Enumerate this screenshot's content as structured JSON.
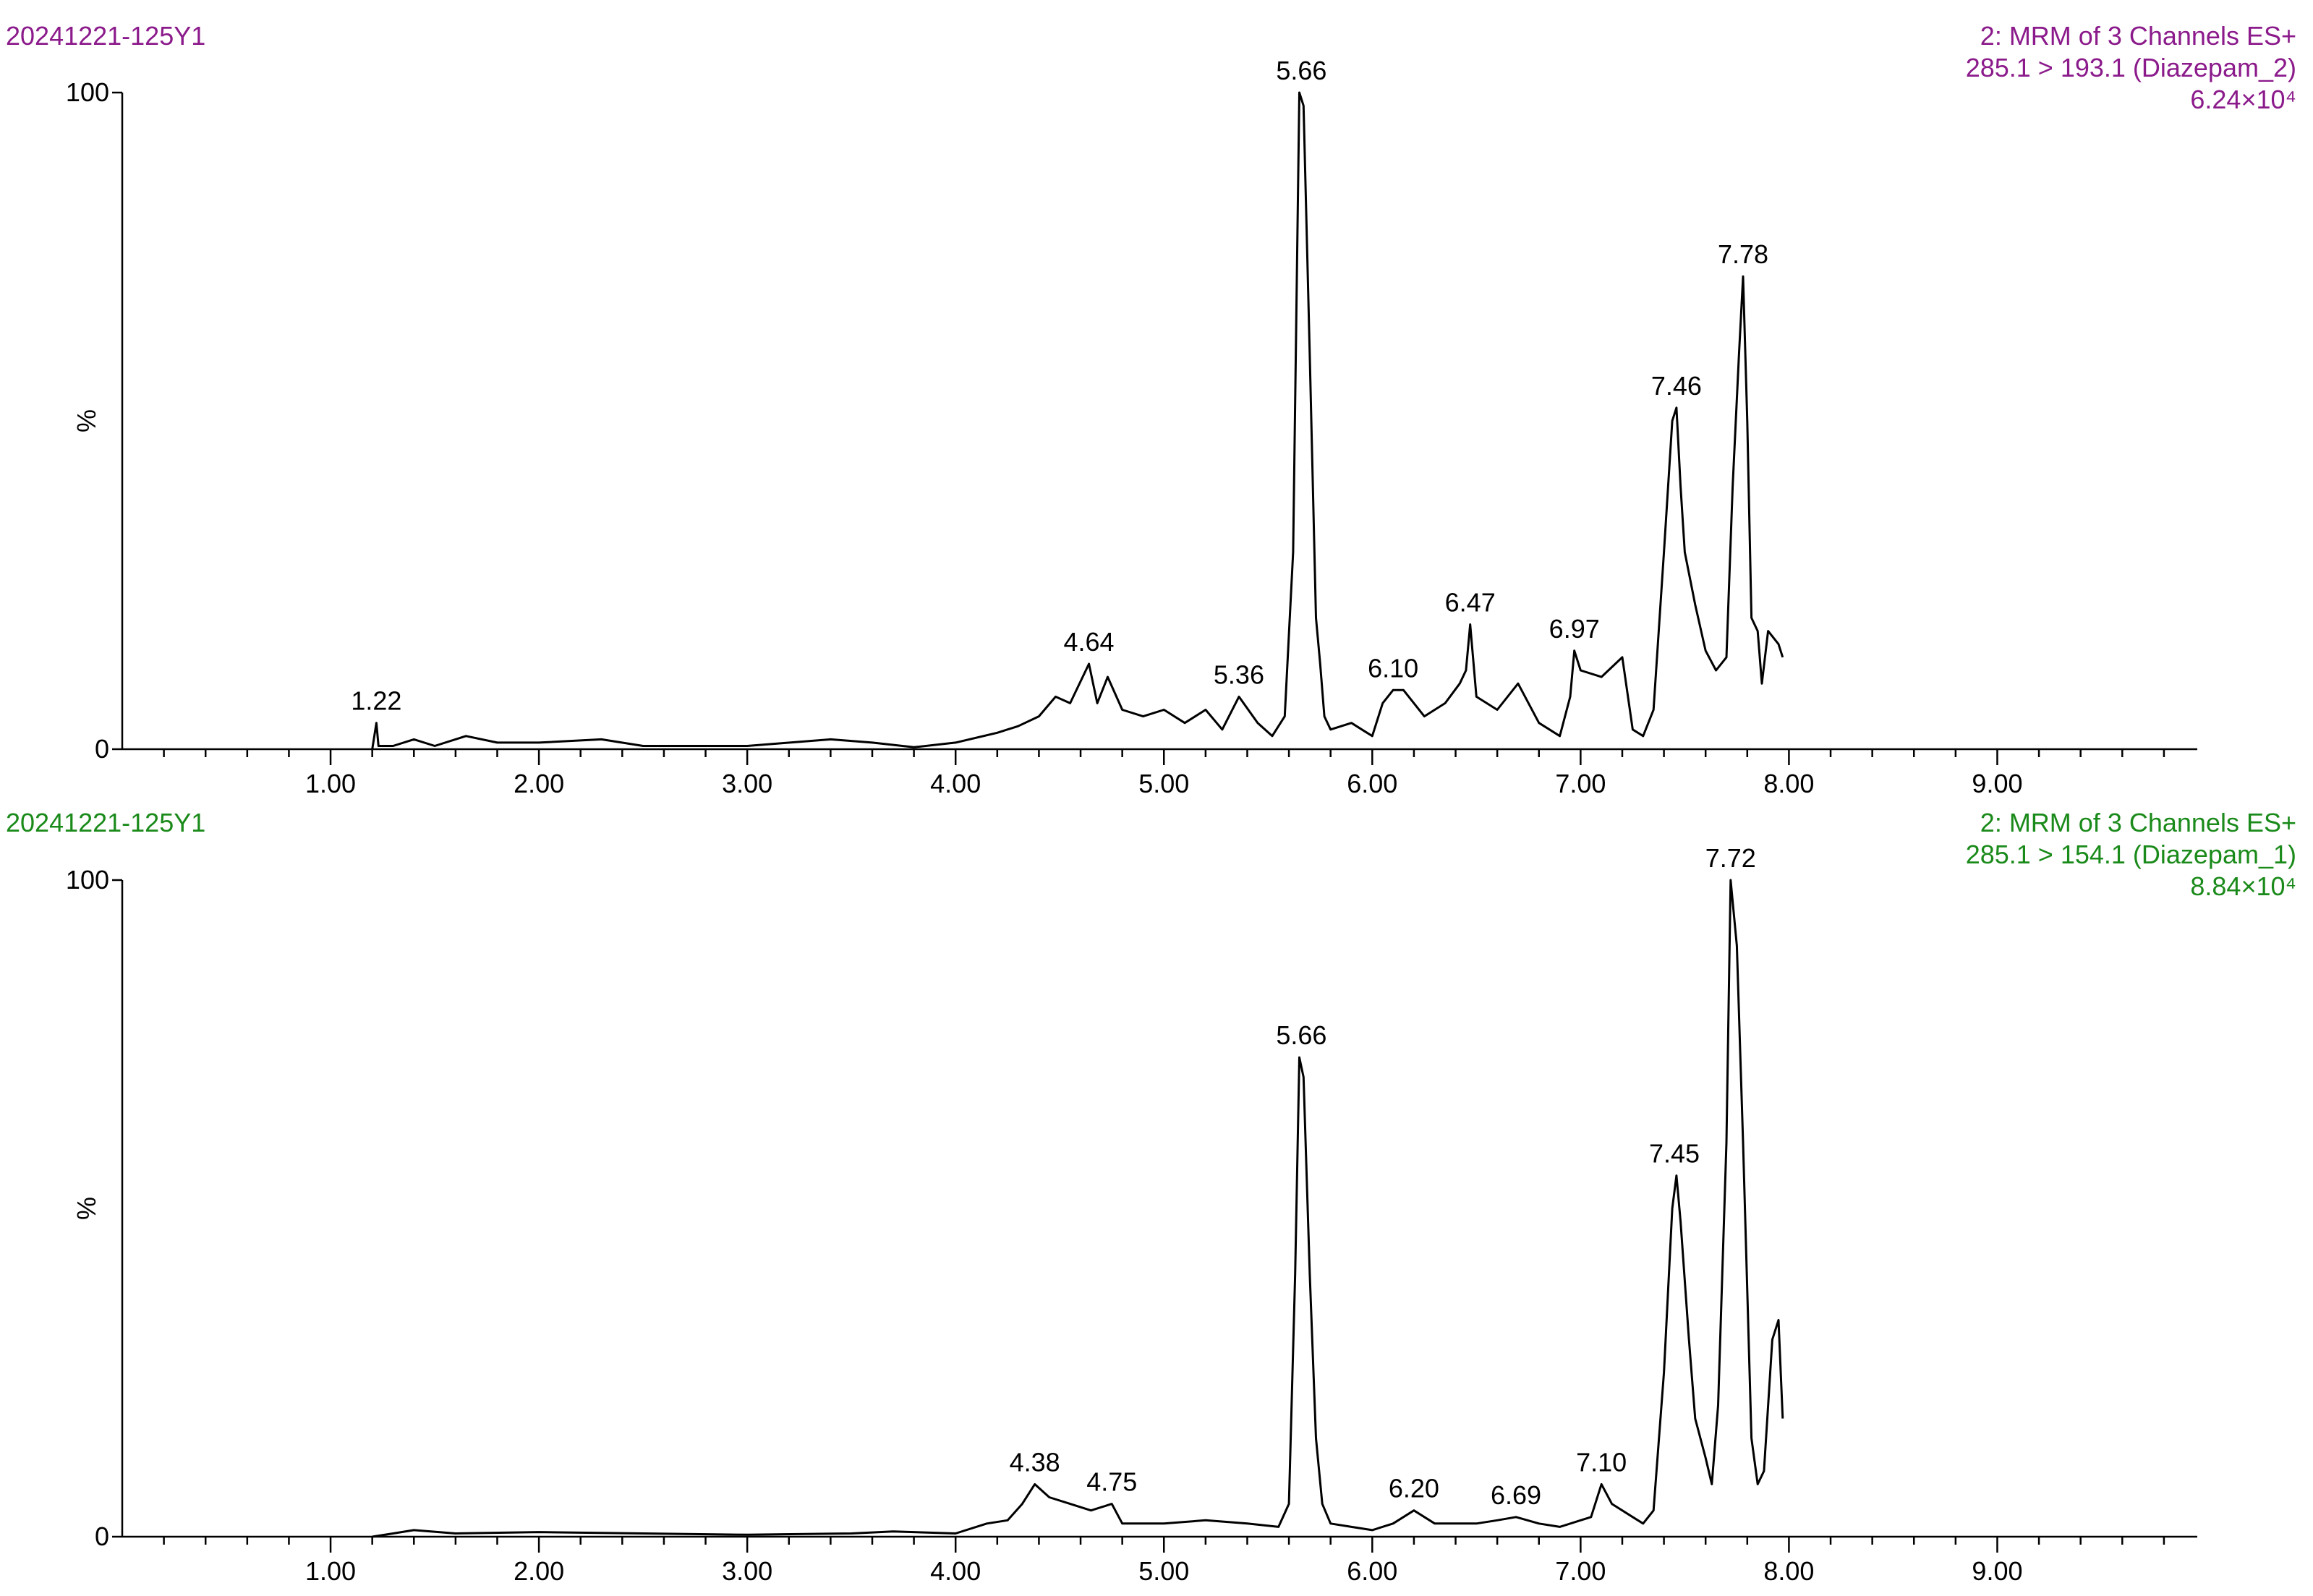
{
  "chart_data": [
    {
      "type": "line",
      "sample": "20241221-125Y1",
      "function": "2: MRM of 3 Channels ES+",
      "transition": "285.1 > 193.1 (Diazepam_2)",
      "intensity": "6.24×10⁴",
      "text_color": "#8b1a8b",
      "line_color": "#000000",
      "ylabel": "%",
      "xlim": [
        0,
        9.96
      ],
      "ylim": [
        0,
        100
      ],
      "yticks": [
        0,
        100
      ],
      "xticks": [
        {
          "value": 1,
          "label": "1.00"
        },
        {
          "value": 2,
          "label": "2.00"
        },
        {
          "value": 3,
          "label": "3.00"
        },
        {
          "value": 4,
          "label": "4.00"
        },
        {
          "value": 5,
          "label": "5.00"
        },
        {
          "value": 6,
          "label": "6.00"
        },
        {
          "value": 7,
          "label": "7.00"
        },
        {
          "value": 8,
          "label": "8.00"
        },
        {
          "value": 9,
          "label": "9.00"
        }
      ],
      "xminor_ticks": [
        0.2,
        0.4,
        0.6,
        0.8,
        1.2,
        1.4,
        1.6,
        1.8,
        2.2,
        2.4,
        2.6,
        2.8,
        3.2,
        3.4,
        3.6,
        3.8,
        4.2,
        4.4,
        4.6,
        4.8,
        5.2,
        5.4,
        5.6,
        5.8,
        6.2,
        6.4,
        6.6,
        6.8,
        7.2,
        7.4,
        7.6,
        7.8,
        8.2,
        8.4,
        8.6,
        8.8,
        9.2,
        9.4,
        9.6,
        9.8
      ],
      "x": [
        1.2,
        1.22,
        1.23,
        1.3,
        1.4,
        1.5,
        1.65,
        1.8,
        2.0,
        2.3,
        2.5,
        3.0,
        3.4,
        3.6,
        3.8,
        4.0,
        4.2,
        4.3,
        4.4,
        4.48,
        4.55,
        4.64,
        4.68,
        4.73,
        4.8,
        4.9,
        5.0,
        5.1,
        5.2,
        5.28,
        5.36,
        5.45,
        5.52,
        5.58,
        5.62,
        5.65,
        5.67,
        5.7,
        5.73,
        5.75,
        5.77,
        5.8,
        5.9,
        5.95,
        6.0,
        6.05,
        6.1,
        6.15,
        6.25,
        6.35,
        6.42,
        6.45,
        6.47,
        6.5,
        6.6,
        6.7,
        6.8,
        6.9,
        6.95,
        6.97,
        7.0,
        7.1,
        7.2,
        7.25,
        7.3,
        7.35,
        7.4,
        7.44,
        7.46,
        7.48,
        7.5,
        7.55,
        7.6,
        7.65,
        7.7,
        7.73,
        7.76,
        7.78,
        7.8,
        7.82,
        7.85,
        7.87,
        7.9,
        7.95,
        7.97
      ],
      "values": [
        0,
        4,
        0.5,
        0.5,
        1.5,
        0.5,
        2,
        1,
        1,
        1.5,
        0.5,
        0.5,
        1.5,
        1,
        0.3,
        1,
        2.5,
        3.5,
        5,
        8,
        7,
        13,
        7,
        11,
        6,
        5,
        6,
        4,
        6,
        3,
        8,
        4,
        2,
        5,
        30,
        100,
        98,
        60,
        20,
        13,
        5,
        3,
        4,
        3,
        2,
        7,
        9,
        9,
        5,
        7,
        10,
        12,
        19,
        8,
        6,
        10,
        4,
        2,
        8,
        15,
        12,
        11,
        14,
        3,
        2,
        6,
        30,
        50,
        52,
        40,
        30,
        22,
        15,
        12,
        14,
        40,
        60,
        72,
        50,
        20,
        18,
        10,
        18,
        16,
        14
      ],
      "peaks": [
        {
          "x": 1.22,
          "y": 4,
          "label": "1.22"
        },
        {
          "x": 4.64,
          "y": 13,
          "label": "4.64"
        },
        {
          "x": 5.36,
          "y": 8,
          "label": "5.36"
        },
        {
          "x": 5.66,
          "y": 100,
          "label": "5.66"
        },
        {
          "x": 6.1,
          "y": 9,
          "label": "6.10"
        },
        {
          "x": 6.47,
          "y": 19,
          "label": "6.47"
        },
        {
          "x": 6.97,
          "y": 15,
          "label": "6.97"
        },
        {
          "x": 7.46,
          "y": 52,
          "label": "7.46"
        },
        {
          "x": 7.78,
          "y": 72,
          "label": "7.78"
        }
      ]
    },
    {
      "type": "line",
      "sample": "20241221-125Y1",
      "function": "2: MRM of 3 Channels ES+",
      "transition": "285.1 > 154.1 (Diazepam_1)",
      "intensity": "8.84×10⁴",
      "text_color": "#1a8a1a",
      "line_color": "#000000",
      "ylabel": "%",
      "xlim": [
        0,
        9.96
      ],
      "ylim": [
        0,
        100
      ],
      "yticks": [
        0,
        100
      ],
      "xticks": [
        {
          "value": 1,
          "label": "1.00"
        },
        {
          "value": 2,
          "label": "2.00"
        },
        {
          "value": 3,
          "label": "3.00"
        },
        {
          "value": 4,
          "label": "4.00"
        },
        {
          "value": 5,
          "label": "5.00"
        },
        {
          "value": 6,
          "label": "6.00"
        },
        {
          "value": 7,
          "label": "7.00"
        },
        {
          "value": 8,
          "label": "8.00"
        },
        {
          "value": 9,
          "label": "9.00"
        }
      ],
      "xminor_ticks": [
        0.2,
        0.4,
        0.6,
        0.8,
        1.2,
        1.4,
        1.6,
        1.8,
        2.2,
        2.4,
        2.6,
        2.8,
        3.2,
        3.4,
        3.6,
        3.8,
        4.2,
        4.4,
        4.6,
        4.8,
        5.2,
        5.4,
        5.6,
        5.8,
        6.2,
        6.4,
        6.6,
        6.8,
        7.2,
        7.4,
        7.6,
        7.8,
        8.2,
        8.4,
        8.6,
        8.8,
        9.2,
        9.4,
        9.6,
        9.8
      ],
      "x": [
        1.2,
        1.3,
        1.4,
        1.6,
        2.0,
        2.5,
        3.0,
        3.5,
        3.7,
        4.0,
        4.15,
        4.25,
        4.32,
        4.38,
        4.45,
        4.55,
        4.65,
        4.75,
        4.8,
        5.0,
        5.2,
        5.4,
        5.55,
        5.6,
        5.63,
        5.65,
        5.67,
        5.7,
        5.73,
        5.76,
        5.8,
        5.9,
        6.0,
        6.1,
        6.2,
        6.3,
        6.5,
        6.6,
        6.69,
        6.8,
        6.9,
        7.0,
        7.05,
        7.1,
        7.15,
        7.25,
        7.3,
        7.35,
        7.4,
        7.44,
        7.46,
        7.48,
        7.52,
        7.55,
        7.6,
        7.63,
        7.66,
        7.7,
        7.72,
        7.75,
        7.78,
        7.82,
        7.85,
        7.88,
        7.92,
        7.95,
        7.97
      ],
      "values": [
        0,
        0.5,
        1,
        0.5,
        0.7,
        0.5,
        0.3,
        0.5,
        0.8,
        0.5,
        2,
        2.5,
        5,
        8,
        6,
        5,
        4,
        5,
        2,
        2,
        2.5,
        2,
        1.5,
        5,
        40,
        73,
        70,
        40,
        15,
        5,
        2,
        1.5,
        1,
        2,
        4,
        2,
        2,
        2.5,
        3,
        2,
        1.5,
        2.5,
        3,
        8,
        5,
        3,
        2,
        4,
        25,
        50,
        55,
        48,
        30,
        18,
        12,
        8,
        20,
        60,
        100,
        90,
        60,
        15,
        8,
        10,
        30,
        33,
        18
      ],
      "peaks": [
        {
          "x": 4.38,
          "y": 8,
          "label": "4.38"
        },
        {
          "x": 4.75,
          "y": 5,
          "label": "4.75"
        },
        {
          "x": 5.66,
          "y": 73,
          "label": "5.66"
        },
        {
          "x": 6.2,
          "y": 4,
          "label": "6.20"
        },
        {
          "x": 6.69,
          "y": 3,
          "label": "6.69"
        },
        {
          "x": 7.1,
          "y": 8,
          "label": "7.10"
        },
        {
          "x": 7.45,
          "y": 55,
          "label": "7.45"
        },
        {
          "x": 7.72,
          "y": 100,
          "label": "7.72"
        }
      ]
    }
  ]
}
